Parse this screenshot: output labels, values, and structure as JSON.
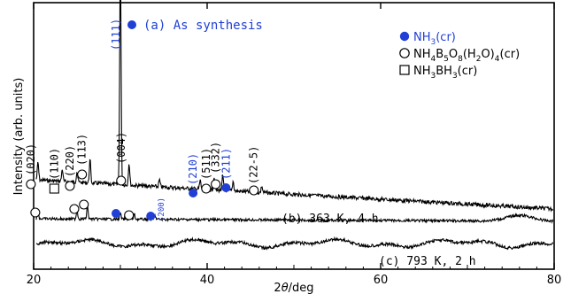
{
  "chart_data": {
    "type": "line",
    "xlabel_prefix": "2",
    "xlabel_theta": "θ",
    "xlabel_unit": "/deg",
    "ylabel": "Intensity (arb. units)",
    "xlim": [
      20,
      80
    ],
    "xticks": [
      20,
      40,
      60,
      80
    ],
    "grid": false,
    "colors": {
      "axis": "#000000",
      "accent": "#1f3fd6",
      "trace": "#000000"
    },
    "series": [
      {
        "name": "(a) As synthesis",
        "marker": "filled-circle",
        "peaks": [
          {
            "x": 20.5,
            "y": 36
          },
          {
            "x": 23.3,
            "y": 26
          },
          {
            "x": 25.0,
            "y": 22
          },
          {
            "x": 26.5,
            "y": 48
          },
          {
            "x": 30.0,
            "y": 470
          },
          {
            "x": 31.0,
            "y": 45
          },
          {
            "x": 34.5,
            "y": 14
          },
          {
            "x": 39.2,
            "y": 18
          },
          {
            "x": 40.8,
            "y": 26
          },
          {
            "x": 41.8,
            "y": 30
          },
          {
            "x": 43.0,
            "y": 20
          },
          {
            "x": 46.3,
            "y": 14
          }
        ]
      },
      {
        "name": "(b) 363 K, 4 h",
        "marker": "open-circle",
        "peaks": [
          {
            "x": 20.5,
            "y": 16
          },
          {
            "x": 25.0,
            "y": 18
          },
          {
            "x": 26.2,
            "y": 28
          },
          {
            "x": 30.0,
            "y": 12
          },
          {
            "x": 31.6,
            "y": 10
          },
          {
            "x": 34.0,
            "y": 8
          },
          {
            "x": 76.0,
            "y": 12
          }
        ]
      },
      {
        "name": "(c) 793 K, 2 h",
        "marker": "none",
        "peaks": []
      }
    ],
    "legend": {
      "position": "top-right",
      "items": [
        {
          "marker": "filled-circle",
          "label": "NH",
          "sub1": "3",
          "rest": "(cr)"
        },
        {
          "marker": "open-circle",
          "label": "NH",
          "sub1": "4",
          "mid1": "B",
          "sub2": "5",
          "mid2": "O",
          "sub3": "8",
          "mid3": "(H",
          "sub4": "2",
          "rest": "O)",
          "sub5": "4",
          "end": "(cr)"
        },
        {
          "marker": "open-square",
          "label": "NH",
          "sub1": "3",
          "mid1": "BH",
          "sub2": "3",
          "rest": "(cr)"
        }
      ]
    },
    "annotations_a": [
      {
        "text": "(020)",
        "x": 20.6,
        "color": "black",
        "marker": "open-circle"
      },
      {
        "text": "(110)",
        "x": 23.3,
        "color": "black",
        "marker": "open-square"
      },
      {
        "text": "(220)",
        "x": 25.1,
        "color": "black",
        "marker": "open-circle"
      },
      {
        "text": "(113)",
        "x": 26.5,
        "color": "black",
        "marker": "open-circle"
      },
      {
        "text": "(111)",
        "x": 29.5,
        "color": "blue",
        "marker": "filled-circle"
      },
      {
        "text": "(004)",
        "x": 31.0,
        "color": "black",
        "marker": "open-circle"
      },
      {
        "text": "(210)",
        "x": 39.3,
        "color": "blue",
        "marker": "filled-circle"
      },
      {
        "text": "(511)",
        "x": 40.8,
        "color": "black",
        "marker": "open-circle"
      },
      {
        "text": "(332)",
        "x": 41.9,
        "color": "black",
        "marker": "open-circle"
      },
      {
        "text": "(211)",
        "x": 43.1,
        "color": "blue",
        "marker": "filled-circle"
      },
      {
        "text": "(22-5)",
        "x": 46.3,
        "color": "black",
        "marker": "open-circle"
      }
    ],
    "annotations_b": [
      {
        "text": "(200)",
        "x": 34.6,
        "color": "blue"
      }
    ]
  }
}
